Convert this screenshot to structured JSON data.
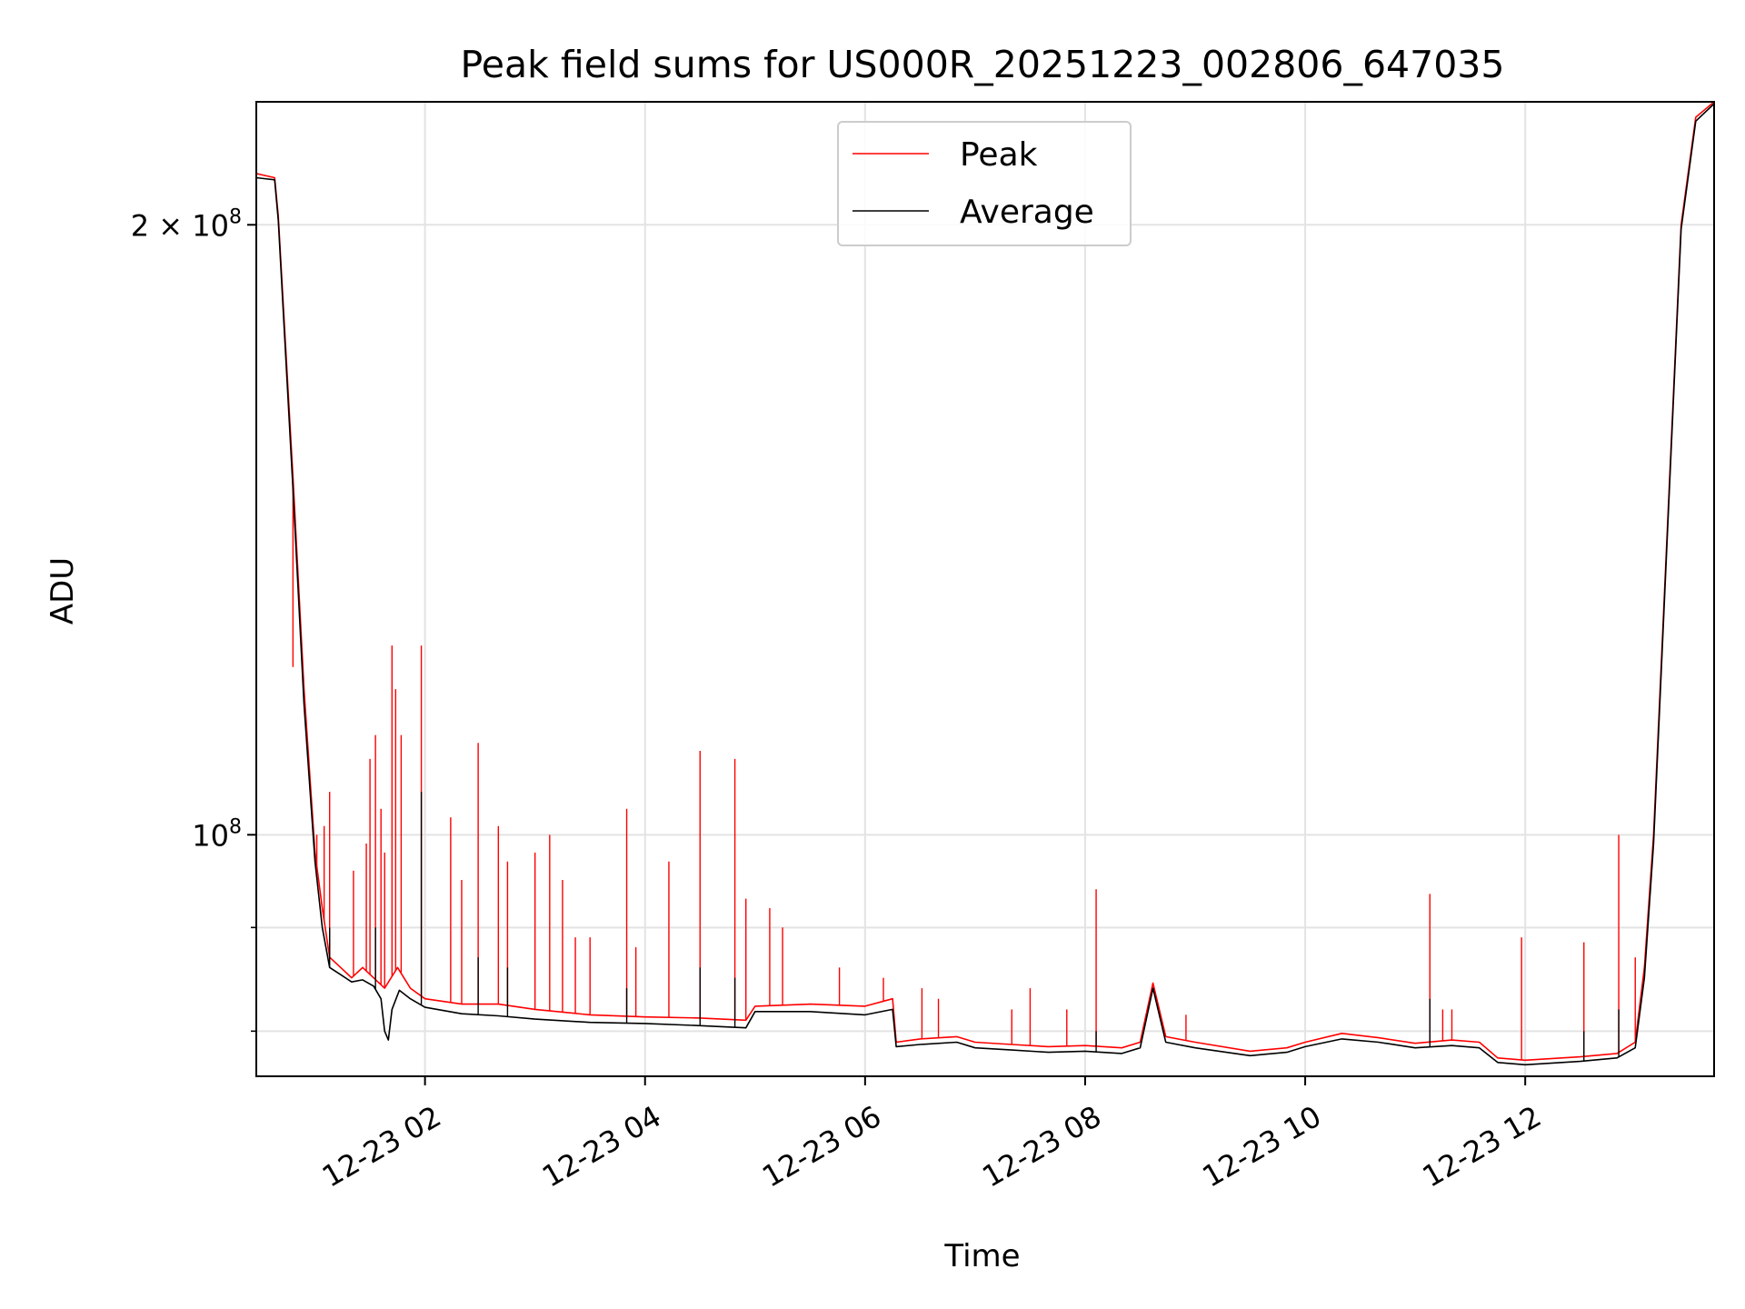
{
  "chart_data": {
    "type": "line",
    "title": "Peak field sums for US000R_20251223_002806_647035",
    "xlabel": "Time",
    "ylabel": "ADU",
    "x_axis": {
      "kind": "datetime",
      "range": [
        "2025-12-23 00:28",
        "2025-12-23 13:43"
      ],
      "ticks": [
        {
          "value": "2025-12-23 02:00",
          "label": "12-23 02"
        },
        {
          "value": "2025-12-23 04:00",
          "label": "12-23 04"
        },
        {
          "value": "2025-12-23 06:00",
          "label": "12-23 06"
        },
        {
          "value": "2025-12-23 08:00",
          "label": "12-23 08"
        },
        {
          "value": "2025-12-23 10:00",
          "label": "12-23 10"
        },
        {
          "value": "2025-12-23 12:00",
          "label": "12-23 12"
        }
      ]
    },
    "y_axis": {
      "scale": "log",
      "range": [
        76000000,
        230000000
      ],
      "major_ticks": [
        {
          "value": 100000000,
          "mantissa": "",
          "exponent": "8"
        },
        {
          "value": 200000000,
          "mantissa": "2",
          "exponent": "8"
        }
      ],
      "minor_ticks": [
        80000000,
        90000000
      ]
    },
    "grid": true,
    "legend": {
      "position": "top-center"
    },
    "series": [
      {
        "name": "Peak",
        "color": "#ff0000",
        "points": [
          [
            "2025-12-23 00:28",
            212000000
          ],
          [
            "2025-12-23 00:38",
            211000000
          ],
          [
            "2025-12-23 00:40",
            202000000
          ],
          [
            "2025-12-23 00:48",
            150000000
          ],
          [
            "2025-12-23 00:54",
            118000000
          ],
          [
            "2025-12-23 01:00",
            98000000
          ],
          [
            "2025-12-23 01:04",
            92000000
          ],
          [
            "2025-12-23 01:08",
            87000000
          ],
          [
            "2025-12-23 01:14",
            86000000
          ],
          [
            "2025-12-23 01:20",
            85000000
          ],
          [
            "2025-12-23 01:26",
            86000000
          ],
          [
            "2025-12-23 01:32",
            85000000
          ],
          [
            "2025-12-23 01:38",
            84000000
          ],
          [
            "2025-12-23 01:45",
            86000000
          ],
          [
            "2025-12-23 01:52",
            84000000
          ],
          [
            "2025-12-23 02:00",
            83000000
          ],
          [
            "2025-12-23 02:20",
            82500000
          ],
          [
            "2025-12-23 02:40",
            82500000
          ],
          [
            "2025-12-23 03:00",
            82000000
          ],
          [
            "2025-12-23 03:30",
            81500000
          ],
          [
            "2025-12-23 04:00",
            81300000
          ],
          [
            "2025-12-23 04:30",
            81200000
          ],
          [
            "2025-12-23 04:55",
            81000000
          ],
          [
            "2025-12-23 05:00",
            82300000
          ],
          [
            "2025-12-23 05:30",
            82500000
          ],
          [
            "2025-12-23 06:00",
            82300000
          ],
          [
            "2025-12-23 06:15",
            83000000
          ],
          [
            "2025-12-23 06:17",
            79000000
          ],
          [
            "2025-12-23 06:30",
            79300000
          ],
          [
            "2025-12-23 06:50",
            79500000
          ],
          [
            "2025-12-23 07:00",
            79000000
          ],
          [
            "2025-12-23 07:20",
            78800000
          ],
          [
            "2025-12-23 07:40",
            78600000
          ],
          [
            "2025-12-23 08:00",
            78700000
          ],
          [
            "2025-12-23 08:20",
            78500000
          ],
          [
            "2025-12-23 08:30",
            79000000
          ],
          [
            "2025-12-23 08:37",
            84500000
          ],
          [
            "2025-12-23 08:44",
            79500000
          ],
          [
            "2025-12-23 09:00",
            79000000
          ],
          [
            "2025-12-23 09:30",
            78200000
          ],
          [
            "2025-12-23 09:50",
            78500000
          ],
          [
            "2025-12-23 10:00",
            79000000
          ],
          [
            "2025-12-23 10:20",
            79800000
          ],
          [
            "2025-12-23 10:40",
            79400000
          ],
          [
            "2025-12-23 11:00",
            78900000
          ],
          [
            "2025-12-23 11:20",
            79200000
          ],
          [
            "2025-12-23 11:35",
            79000000
          ],
          [
            "2025-12-23 11:45",
            77600000
          ],
          [
            "2025-12-23 12:00",
            77400000
          ],
          [
            "2025-12-23 12:30",
            77700000
          ],
          [
            "2025-12-23 12:50",
            78000000
          ],
          [
            "2025-12-23 13:00",
            79000000
          ],
          [
            "2025-12-23 13:05",
            86000000
          ],
          [
            "2025-12-23 13:10",
            100000000
          ],
          [
            "2025-12-23 13:18",
            145000000
          ],
          [
            "2025-12-23 13:25",
            200000000
          ],
          [
            "2025-12-23 13:33",
            226000000
          ],
          [
            "2025-12-23 13:43",
            230000000
          ]
        ],
        "spikes": [
          [
            "2025-12-23 00:48",
            121000000
          ],
          [
            "2025-12-23 01:01",
            100000000
          ],
          [
            "2025-12-23 01:05",
            101000000
          ],
          [
            "2025-12-23 01:08",
            105000000
          ],
          [
            "2025-12-23 01:21",
            96000000
          ],
          [
            "2025-12-23 01:28",
            99000000
          ],
          [
            "2025-12-23 01:30",
            109000000
          ],
          [
            "2025-12-23 01:33",
            112000000
          ],
          [
            "2025-12-23 01:36",
            103000000
          ],
          [
            "2025-12-23 01:38",
            98000000
          ],
          [
            "2025-12-23 01:42",
            124000000
          ],
          [
            "2025-12-23 01:44",
            118000000
          ],
          [
            "2025-12-23 01:47",
            112000000
          ],
          [
            "2025-12-23 01:58",
            124000000
          ],
          [
            "2025-12-23 02:14",
            102000000
          ],
          [
            "2025-12-23 02:20",
            95000000
          ],
          [
            "2025-12-23 02:29",
            111000000
          ],
          [
            "2025-12-23 02:40",
            101000000
          ],
          [
            "2025-12-23 02:45",
            97000000
          ],
          [
            "2025-12-23 03:00",
            98000000
          ],
          [
            "2025-12-23 03:08",
            100000000
          ],
          [
            "2025-12-23 03:15",
            95000000
          ],
          [
            "2025-12-23 03:22",
            89000000
          ],
          [
            "2025-12-23 03:30",
            89000000
          ],
          [
            "2025-12-23 03:50",
            103000000
          ],
          [
            "2025-12-23 03:55",
            88000000
          ],
          [
            "2025-12-23 04:13",
            97000000
          ],
          [
            "2025-12-23 04:30",
            110000000
          ],
          [
            "2025-12-23 04:49",
            109000000
          ],
          [
            "2025-12-23 04:55",
            93000000
          ],
          [
            "2025-12-23 05:08",
            92000000
          ],
          [
            "2025-12-23 05:15",
            90000000
          ],
          [
            "2025-12-23 05:46",
            86000000
          ],
          [
            "2025-12-23 06:10",
            85000000
          ],
          [
            "2025-12-23 06:31",
            84000000
          ],
          [
            "2025-12-23 06:40",
            83000000
          ],
          [
            "2025-12-23 07:20",
            82000000
          ],
          [
            "2025-12-23 07:30",
            84000000
          ],
          [
            "2025-12-23 07:50",
            82000000
          ],
          [
            "2025-12-23 08:06",
            94000000
          ],
          [
            "2025-12-23 08:55",
            81500000
          ],
          [
            "2025-12-23 11:08",
            93500000
          ],
          [
            "2025-12-23 11:15",
            82000000
          ],
          [
            "2025-12-23 11:20",
            82000000
          ],
          [
            "2025-12-23 11:58",
            89000000
          ],
          [
            "2025-12-23 12:32",
            88500000
          ],
          [
            "2025-12-23 12:51",
            100000000
          ],
          [
            "2025-12-23 13:00",
            87000000
          ]
        ]
      },
      {
        "name": "Average",
        "color": "#000000",
        "points": [
          [
            "2025-12-23 00:28",
            211000000
          ],
          [
            "2025-12-23 00:38",
            210500000
          ],
          [
            "2025-12-23 00:40",
            201000000
          ],
          [
            "2025-12-23 00:48",
            148000000
          ],
          [
            "2025-12-23 00:54",
            116000000
          ],
          [
            "2025-12-23 01:00",
            97000000
          ],
          [
            "2025-12-23 01:04",
            90000000
          ],
          [
            "2025-12-23 01:08",
            86000000
          ],
          [
            "2025-12-23 01:14",
            85300000
          ],
          [
            "2025-12-23 01:20",
            84600000
          ],
          [
            "2025-12-23 01:26",
            84800000
          ],
          [
            "2025-12-23 01:32",
            84200000
          ],
          [
            "2025-12-23 01:36",
            83000000
          ],
          [
            "2025-12-23 01:38",
            80000000
          ],
          [
            "2025-12-23 01:40",
            79200000
          ],
          [
            "2025-12-23 01:42",
            82000000
          ],
          [
            "2025-12-23 01:46",
            83800000
          ],
          [
            "2025-12-23 01:52",
            83000000
          ],
          [
            "2025-12-23 02:00",
            82200000
          ],
          [
            "2025-12-23 02:20",
            81600000
          ],
          [
            "2025-12-23 02:40",
            81400000
          ],
          [
            "2025-12-23 03:00",
            81100000
          ],
          [
            "2025-12-23 03:30",
            80800000
          ],
          [
            "2025-12-23 04:00",
            80700000
          ],
          [
            "2025-12-23 04:30",
            80500000
          ],
          [
            "2025-12-23 04:55",
            80300000
          ],
          [
            "2025-12-23 05:00",
            81800000
          ],
          [
            "2025-12-23 05:30",
            81800000
          ],
          [
            "2025-12-23 06:00",
            81500000
          ],
          [
            "2025-12-23 06:15",
            82000000
          ],
          [
            "2025-12-23 06:17",
            78600000
          ],
          [
            "2025-12-23 06:30",
            78800000
          ],
          [
            "2025-12-23 06:50",
            79000000
          ],
          [
            "2025-12-23 07:00",
            78500000
          ],
          [
            "2025-12-23 07:20",
            78300000
          ],
          [
            "2025-12-23 07:40",
            78100000
          ],
          [
            "2025-12-23 08:00",
            78200000
          ],
          [
            "2025-12-23 08:20",
            78000000
          ],
          [
            "2025-12-23 08:30",
            78500000
          ],
          [
            "2025-12-23 08:37",
            84000000
          ],
          [
            "2025-12-23 08:44",
            79000000
          ],
          [
            "2025-12-23 09:00",
            78500000
          ],
          [
            "2025-12-23 09:30",
            77800000
          ],
          [
            "2025-12-23 09:50",
            78100000
          ],
          [
            "2025-12-23 10:00",
            78600000
          ],
          [
            "2025-12-23 10:20",
            79300000
          ],
          [
            "2025-12-23 10:40",
            79000000
          ],
          [
            "2025-12-23 11:00",
            78500000
          ],
          [
            "2025-12-23 11:20",
            78700000
          ],
          [
            "2025-12-23 11:35",
            78500000
          ],
          [
            "2025-12-23 11:45",
            77200000
          ],
          [
            "2025-12-23 12:00",
            77000000
          ],
          [
            "2025-12-23 12:30",
            77300000
          ],
          [
            "2025-12-23 12:50",
            77600000
          ],
          [
            "2025-12-23 13:00",
            78500000
          ],
          [
            "2025-12-23 13:05",
            85000000
          ],
          [
            "2025-12-23 13:10",
            99000000
          ],
          [
            "2025-12-23 13:18",
            144000000
          ],
          [
            "2025-12-23 13:25",
            199000000
          ],
          [
            "2025-12-23 13:33",
            225000000
          ],
          [
            "2025-12-23 13:43",
            229500000
          ]
        ],
        "spikes": [
          [
            "2025-12-23 01:08",
            90000000
          ],
          [
            "2025-12-23 01:33",
            90000000
          ],
          [
            "2025-12-23 01:58",
            105000000
          ],
          [
            "2025-12-23 02:29",
            87000000
          ],
          [
            "2025-12-23 02:45",
            86000000
          ],
          [
            "2025-12-23 03:50",
            84000000
          ],
          [
            "2025-12-23 04:30",
            86000000
          ],
          [
            "2025-12-23 04:49",
            85000000
          ],
          [
            "2025-12-23 08:06",
            80000000
          ],
          [
            "2025-12-23 11:08",
            83000000
          ],
          [
            "2025-12-23 12:32",
            80000000
          ],
          [
            "2025-12-23 12:51",
            82000000
          ]
        ]
      }
    ]
  }
}
